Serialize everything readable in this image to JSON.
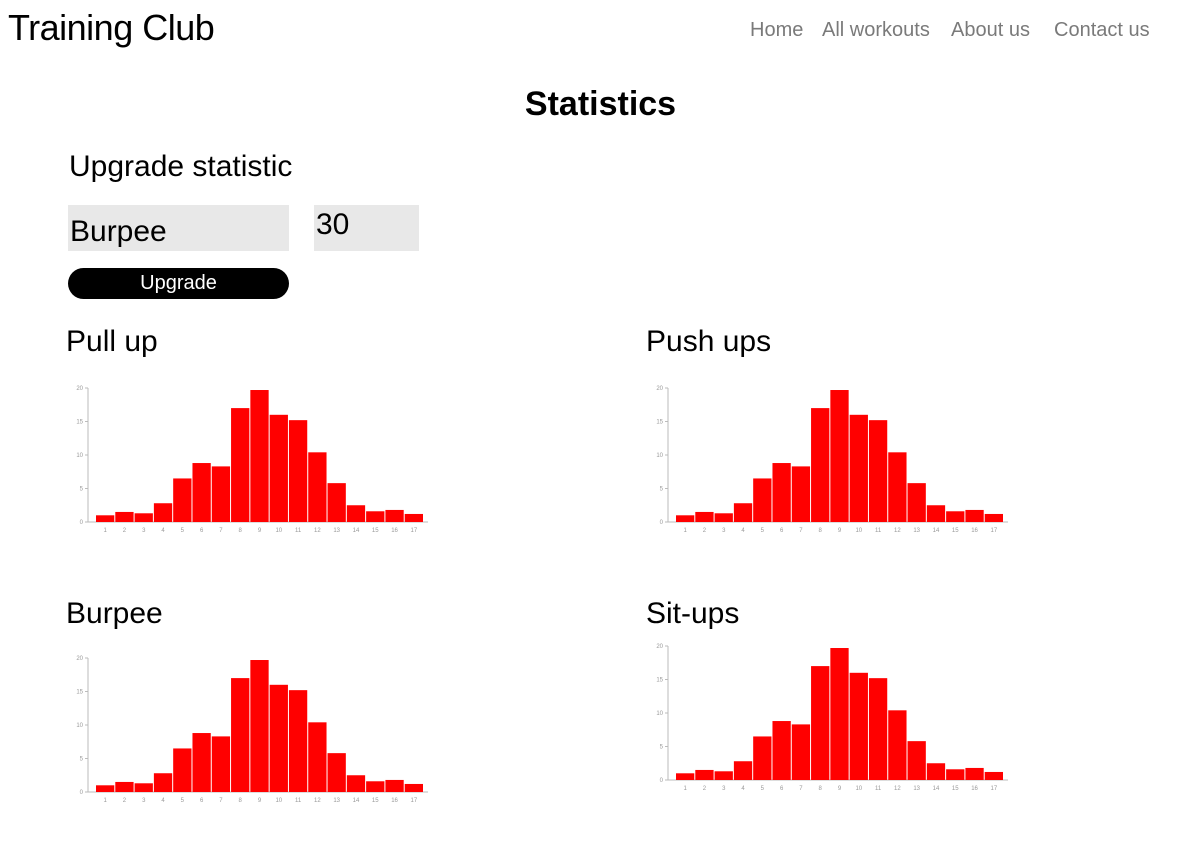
{
  "header": {
    "brand": "Training Club",
    "nav": [
      {
        "label": "Home"
      },
      {
        "label": "All workouts"
      },
      {
        "label": "About us"
      },
      {
        "label": "Contact us"
      }
    ]
  },
  "page": {
    "title": "Statistics"
  },
  "upgrade": {
    "title": "Upgrade statistic",
    "exercise_value": "Burpee",
    "amount_value": "30",
    "button_label": "Upgrade"
  },
  "colors": {
    "bar": "#ff0000",
    "axis": "#bbbbbb",
    "tick_text": "#999999",
    "nav_text": "#7a7a7a"
  },
  "stats": [
    {
      "title": "Pull up"
    },
    {
      "title": "Push ups"
    },
    {
      "title": "Burpee"
    },
    {
      "title": "Sit-ups"
    }
  ],
  "chart_data": [
    {
      "type": "bar",
      "title": "Pull up",
      "categories": [
        "1",
        "2",
        "3",
        "4",
        "5",
        "6",
        "7",
        "8",
        "9",
        "10",
        "11",
        "12",
        "13",
        "14",
        "15",
        "16",
        "17"
      ],
      "values": [
        1,
        1.5,
        1.3,
        2.8,
        6.5,
        8.8,
        8.3,
        17,
        19.7,
        16,
        15.2,
        10.4,
        5.8,
        2.5,
        1.6,
        1.8,
        1.2
      ],
      "ylim": [
        0,
        20
      ],
      "yticks": [
        0,
        5,
        10,
        15,
        20
      ],
      "grid": false
    },
    {
      "type": "bar",
      "title": "Push ups",
      "categories": [
        "1",
        "2",
        "3",
        "4",
        "5",
        "6",
        "7",
        "8",
        "9",
        "10",
        "11",
        "12",
        "13",
        "14",
        "15",
        "16",
        "17"
      ],
      "values": [
        1,
        1.5,
        1.3,
        2.8,
        6.5,
        8.8,
        8.3,
        17,
        19.7,
        16,
        15.2,
        10.4,
        5.8,
        2.5,
        1.6,
        1.8,
        1.2
      ],
      "ylim": [
        0,
        20
      ],
      "yticks": [
        0,
        5,
        10,
        15,
        20
      ],
      "grid": false
    },
    {
      "type": "bar",
      "title": "Burpee",
      "categories": [
        "1",
        "2",
        "3",
        "4",
        "5",
        "6",
        "7",
        "8",
        "9",
        "10",
        "11",
        "12",
        "13",
        "14",
        "15",
        "16",
        "17"
      ],
      "values": [
        1,
        1.5,
        1.3,
        2.8,
        6.5,
        8.8,
        8.3,
        17,
        19.7,
        16,
        15.2,
        10.4,
        5.8,
        2.5,
        1.6,
        1.8,
        1.2
      ],
      "ylim": [
        0,
        20
      ],
      "yticks": [
        0,
        5,
        10,
        15,
        20
      ],
      "grid": false
    },
    {
      "type": "bar",
      "title": "Sit-ups",
      "categories": [
        "1",
        "2",
        "3",
        "4",
        "5",
        "6",
        "7",
        "8",
        "9",
        "10",
        "11",
        "12",
        "13",
        "14",
        "15",
        "16",
        "17"
      ],
      "values": [
        1,
        1.5,
        1.3,
        2.8,
        6.5,
        8.8,
        8.3,
        17,
        19.7,
        16,
        15.2,
        10.4,
        5.8,
        2.5,
        1.6,
        1.8,
        1.2
      ],
      "ylim": [
        0,
        20
      ],
      "yticks": [
        0,
        5,
        10,
        15,
        20
      ],
      "grid": false
    }
  ]
}
